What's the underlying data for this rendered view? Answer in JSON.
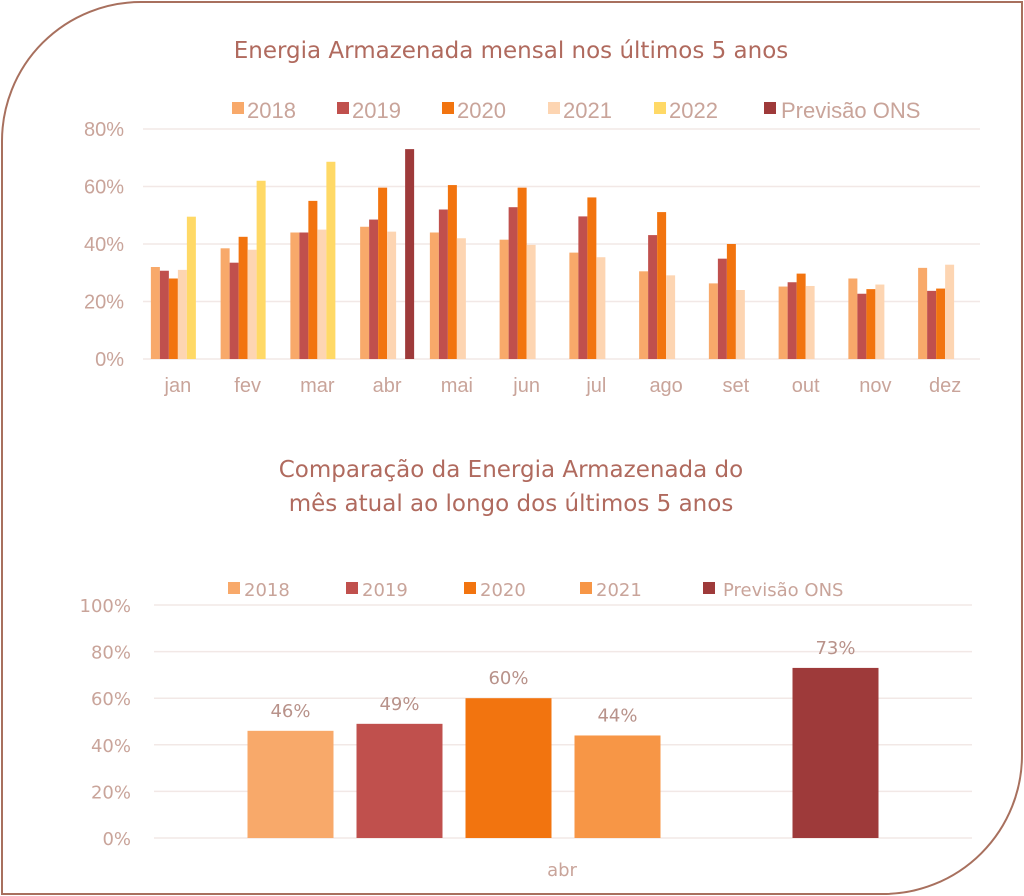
{
  "chart_data": [
    {
      "type": "bar",
      "title": "Energia Armazenada mensal nos últimos 5 anos",
      "xlabel": "",
      "ylabel": "",
      "ylim": [
        0,
        0.8
      ],
      "yticks": [
        0,
        0.2,
        0.4,
        0.6,
        0.8
      ],
      "ytick_labels": [
        "0%",
        "20%",
        "40%",
        "60%",
        "80%"
      ],
      "grid": true,
      "legend_position": "top",
      "categories": [
        "jan",
        "fev",
        "mar",
        "abr",
        "mai",
        "jun",
        "jul",
        "ago",
        "set",
        "out",
        "nov",
        "dez"
      ],
      "series": [
        {
          "name": "2018",
          "color": "#F8A96A",
          "values": [
            0.32,
            0.385,
            0.44,
            0.46,
            0.44,
            0.415,
            0.37,
            0.305,
            0.263,
            0.252,
            0.28,
            0.317
          ]
        },
        {
          "name": "2019",
          "color": "#C0504D",
          "values": [
            0.307,
            0.335,
            0.44,
            0.485,
            0.52,
            0.528,
            0.496,
            0.431,
            0.349,
            0.267,
            0.227,
            0.237
          ]
        },
        {
          "name": "2020",
          "color": "#F2740F",
          "values": [
            0.28,
            0.425,
            0.55,
            0.596,
            0.605,
            0.596,
            0.562,
            0.511,
            0.4,
            0.297,
            0.243,
            0.245
          ]
        },
        {
          "name": "2021",
          "color": "#FDD5B2",
          "values": [
            0.31,
            0.38,
            0.45,
            0.443,
            0.42,
            0.397,
            0.354,
            0.291,
            0.24,
            0.254,
            0.259,
            0.328
          ]
        },
        {
          "name": "2022",
          "color": "#FFD966",
          "values": [
            0.495,
            0.62,
            0.686,
            null,
            null,
            null,
            null,
            null,
            null,
            null,
            null,
            null
          ]
        },
        {
          "name": "Previsão ONS",
          "color": "#9E3A3A",
          "values": [
            null,
            null,
            null,
            0.73,
            null,
            null,
            null,
            null,
            null,
            null,
            null,
            null
          ]
        }
      ]
    },
    {
      "type": "bar",
      "title": "Comparação da Energia Armazenada do mês atual ao longo dos últimos 5 anos",
      "title_lines": [
        "Comparação da Energia Armazenada do",
        "mês atual ao longo dos últimos 5 anos"
      ],
      "xlabel": "",
      "ylabel": "",
      "ylim": [
        0,
        1.0
      ],
      "yticks": [
        0,
        0.2,
        0.4,
        0.6,
        0.8,
        1.0
      ],
      "ytick_labels": [
        "0%",
        "20%",
        "40%",
        "60%",
        "80%",
        "100%"
      ],
      "grid": true,
      "legend_position": "top",
      "categories": [
        "abr"
      ],
      "series": [
        {
          "name": "2018",
          "color": "#F8A96A",
          "values": [
            0.46
          ],
          "label": "46%"
        },
        {
          "name": "2019",
          "color": "#C0504D",
          "values": [
            0.49
          ],
          "label": "49%"
        },
        {
          "name": "2020",
          "color": "#F2740F",
          "values": [
            0.6
          ],
          "label": "60%"
        },
        {
          "name": "2021",
          "color": "#F79646",
          "values": [
            0.44
          ],
          "label": "44%"
        },
        {
          "name": "",
          "color": "",
          "values": [
            null
          ],
          "label": ""
        },
        {
          "name": "Previsão ONS",
          "color": "#9E3A3A",
          "values": [
            0.73
          ],
          "label": "73%"
        }
      ]
    }
  ]
}
